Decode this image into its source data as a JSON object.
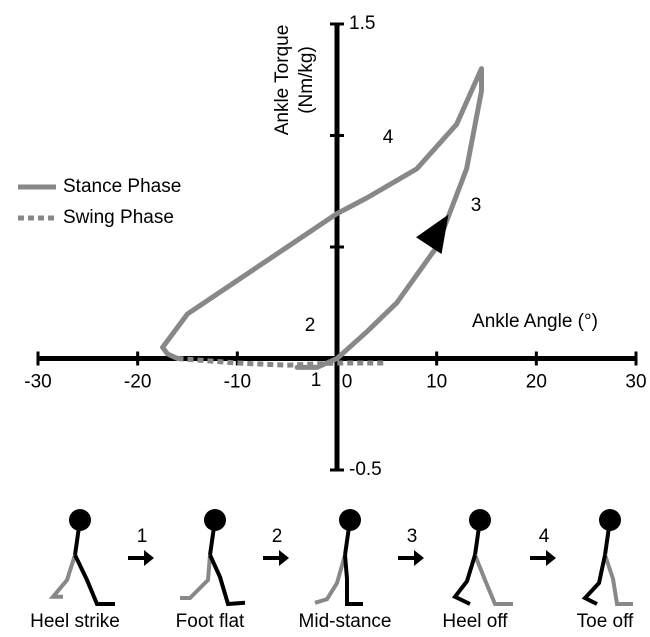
{
  "chart_data": {
    "type": "line",
    "x_label": "Ankle Angle (°)",
    "y_label": [
      "Ankle Torque",
      "(Nm/kg)"
    ],
    "xlim": [
      -30,
      30
    ],
    "xticks": [
      -30,
      -20,
      -10,
      0,
      10,
      20,
      30
    ],
    "ylim": [
      -0.5,
      1.5
    ],
    "yticks": [
      -0.5,
      1.5
    ],
    "y_minor_ticks": [
      0.5,
      1
    ],
    "legend": "left",
    "series": [
      {
        "name": "Stance Phase",
        "color": "#888888",
        "dashed": false,
        "x": [
          -4,
          -2,
          0,
          3,
          6,
          10,
          13,
          14.5,
          14.5,
          12,
          8,
          3,
          0,
          -5,
          -10,
          -15,
          -17.5,
          -17,
          -16
        ],
        "values": [
          -0.04,
          -0.04,
          0,
          0.12,
          0.25,
          0.5,
          0.85,
          1.2,
          1.3,
          1.05,
          0.85,
          0.72,
          0.65,
          0.5,
          0.35,
          0.2,
          0.05,
          0.02,
          0
        ]
      },
      {
        "name": "Swing Phase",
        "color": "#888888",
        "dashed": true,
        "x": [
          -16,
          -10,
          -5,
          0,
          5
        ],
        "values": [
          0,
          -0.02,
          -0.03,
          -0.02,
          -0.02
        ]
      }
    ],
    "annotations": [
      "1",
      "2",
      "3",
      "4"
    ]
  },
  "gait_phases": {
    "labels": [
      "Heel strike",
      "Foot flat",
      "Mid-stance",
      "Heel off",
      "Toe off"
    ],
    "steps": [
      "1",
      "2",
      "3",
      "4"
    ]
  }
}
